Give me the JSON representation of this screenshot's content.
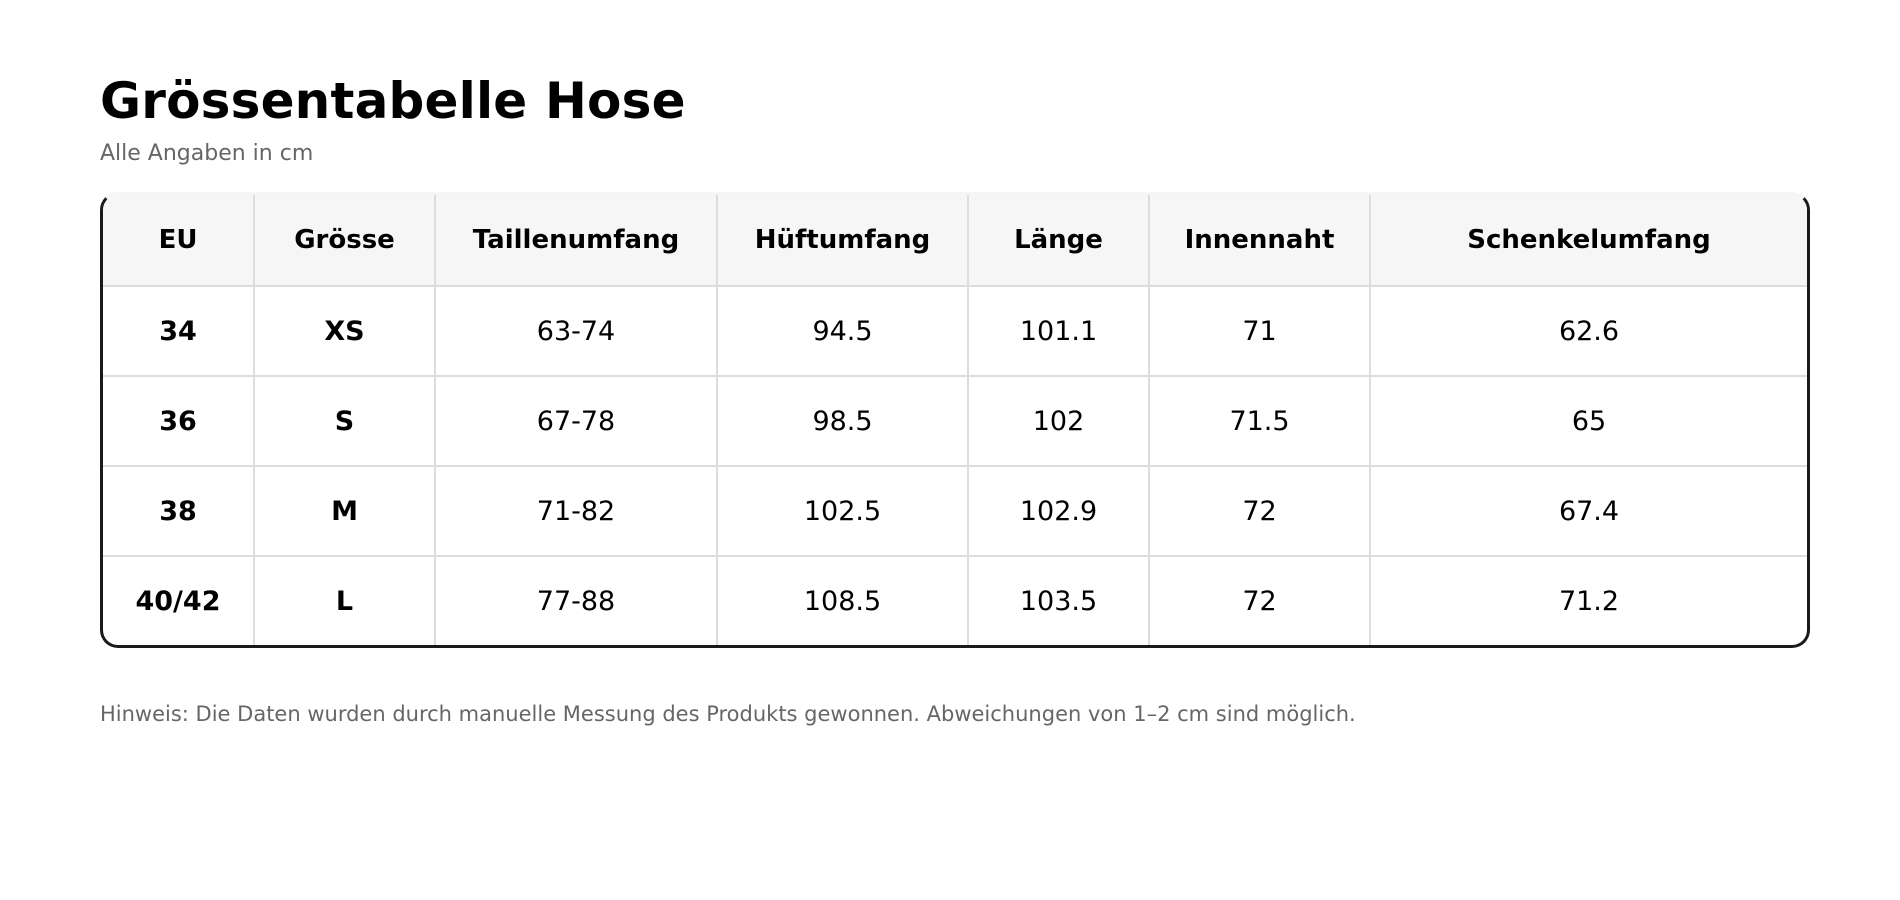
{
  "title": "Grössentabelle Hose",
  "subtitle": "Alle Angaben in cm",
  "table": {
    "headers": [
      "EU",
      "Grösse",
      "Taillenumfang",
      "Hüftumfang",
      "Länge",
      "Innennaht",
      "Schenkelumfang"
    ],
    "rows": [
      [
        "34",
        "XS",
        "63-74",
        "94.5",
        "101.1",
        "71",
        "62.6"
      ],
      [
        "36",
        "S",
        "67-78",
        "98.5",
        "102",
        "71.5",
        "65"
      ],
      [
        "38",
        "M",
        "71-82",
        "102.5",
        "102.9",
        "72",
        "67.4"
      ],
      [
        "40/42",
        "L",
        "77-88",
        "108.5",
        "103.5",
        "72",
        "71.2"
      ]
    ]
  },
  "note": "Hinweis: Die Daten wurden durch manuelle Messung des Produkts gewonnen. Abweichungen von 1–2 cm sind möglich."
}
